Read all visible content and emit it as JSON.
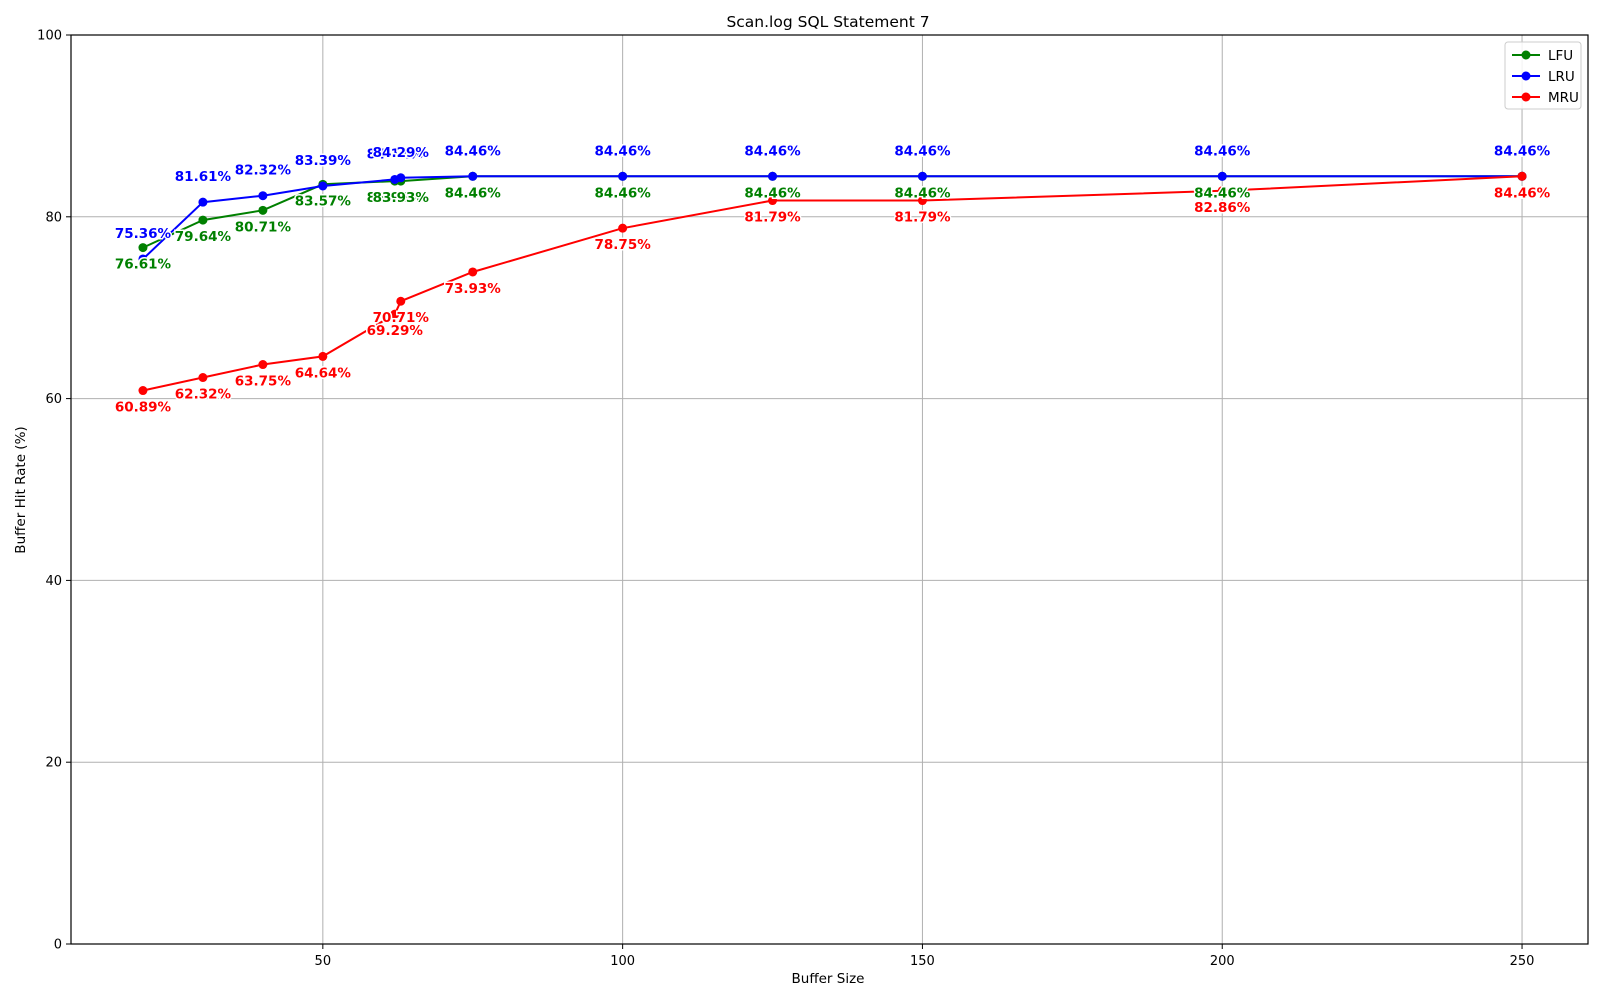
{
  "chart_data": {
    "type": "line",
    "title": "Scan.log SQL Statement 7",
    "xlabel": "Buffer Size",
    "ylabel": "Buffer Hit Rate (%)",
    "xlim": [
      8,
      261
    ],
    "ylim": [
      0,
      100
    ],
    "x_ticks": [
      50,
      100,
      150,
      200,
      250
    ],
    "y_ticks": [
      0,
      20,
      40,
      60,
      80,
      100
    ],
    "grid": true,
    "legend_position": "top-right",
    "series": [
      {
        "name": "LFU",
        "color": "#008000",
        "label_position": "below",
        "x": [
          20,
          30,
          40,
          50,
          62,
          63,
          75,
          100,
          125,
          150,
          200,
          250
        ],
        "y": [
          76.61,
          79.64,
          80.71,
          83.57,
          83.93,
          83.93,
          84.46,
          84.46,
          84.46,
          84.46,
          84.46,
          84.46
        ],
        "labels": [
          "76.61%",
          "79.64%",
          "80.71%",
          "83.57%",
          "83.93%",
          "83.93%",
          "84.46%",
          "84.46%",
          "84.46%",
          "84.46%",
          "84.46%",
          "84.46%"
        ]
      },
      {
        "name": "LRU",
        "color": "#0000ff",
        "label_position": "above",
        "x": [
          20,
          30,
          40,
          50,
          62,
          63,
          75,
          100,
          125,
          150,
          200,
          250
        ],
        "y": [
          75.36,
          81.61,
          82.32,
          83.39,
          84.11,
          84.29,
          84.46,
          84.46,
          84.46,
          84.46,
          84.46,
          84.46
        ],
        "labels": [
          "75.36%",
          "81.61%",
          "82.32%",
          "83.39%",
          "84.11%",
          "84.29%",
          "84.46%",
          "84.46%",
          "84.46%",
          "84.46%",
          "84.46%",
          "84.46%"
        ]
      },
      {
        "name": "MRU",
        "color": "#ff0000",
        "label_position": "below",
        "x": [
          20,
          30,
          40,
          50,
          62,
          63,
          75,
          100,
          125,
          150,
          200,
          250
        ],
        "y": [
          60.89,
          62.32,
          63.75,
          64.64,
          69.29,
          70.71,
          73.93,
          78.75,
          81.79,
          81.79,
          82.86,
          84.46
        ],
        "labels": [
          "60.89%",
          "62.32%",
          "63.75%",
          "64.64%",
          "69.29%",
          "70.71%",
          "73.93%",
          "78.75%",
          "81.79%",
          "81.79%",
          "82.86%",
          "84.46%"
        ]
      }
    ]
  }
}
